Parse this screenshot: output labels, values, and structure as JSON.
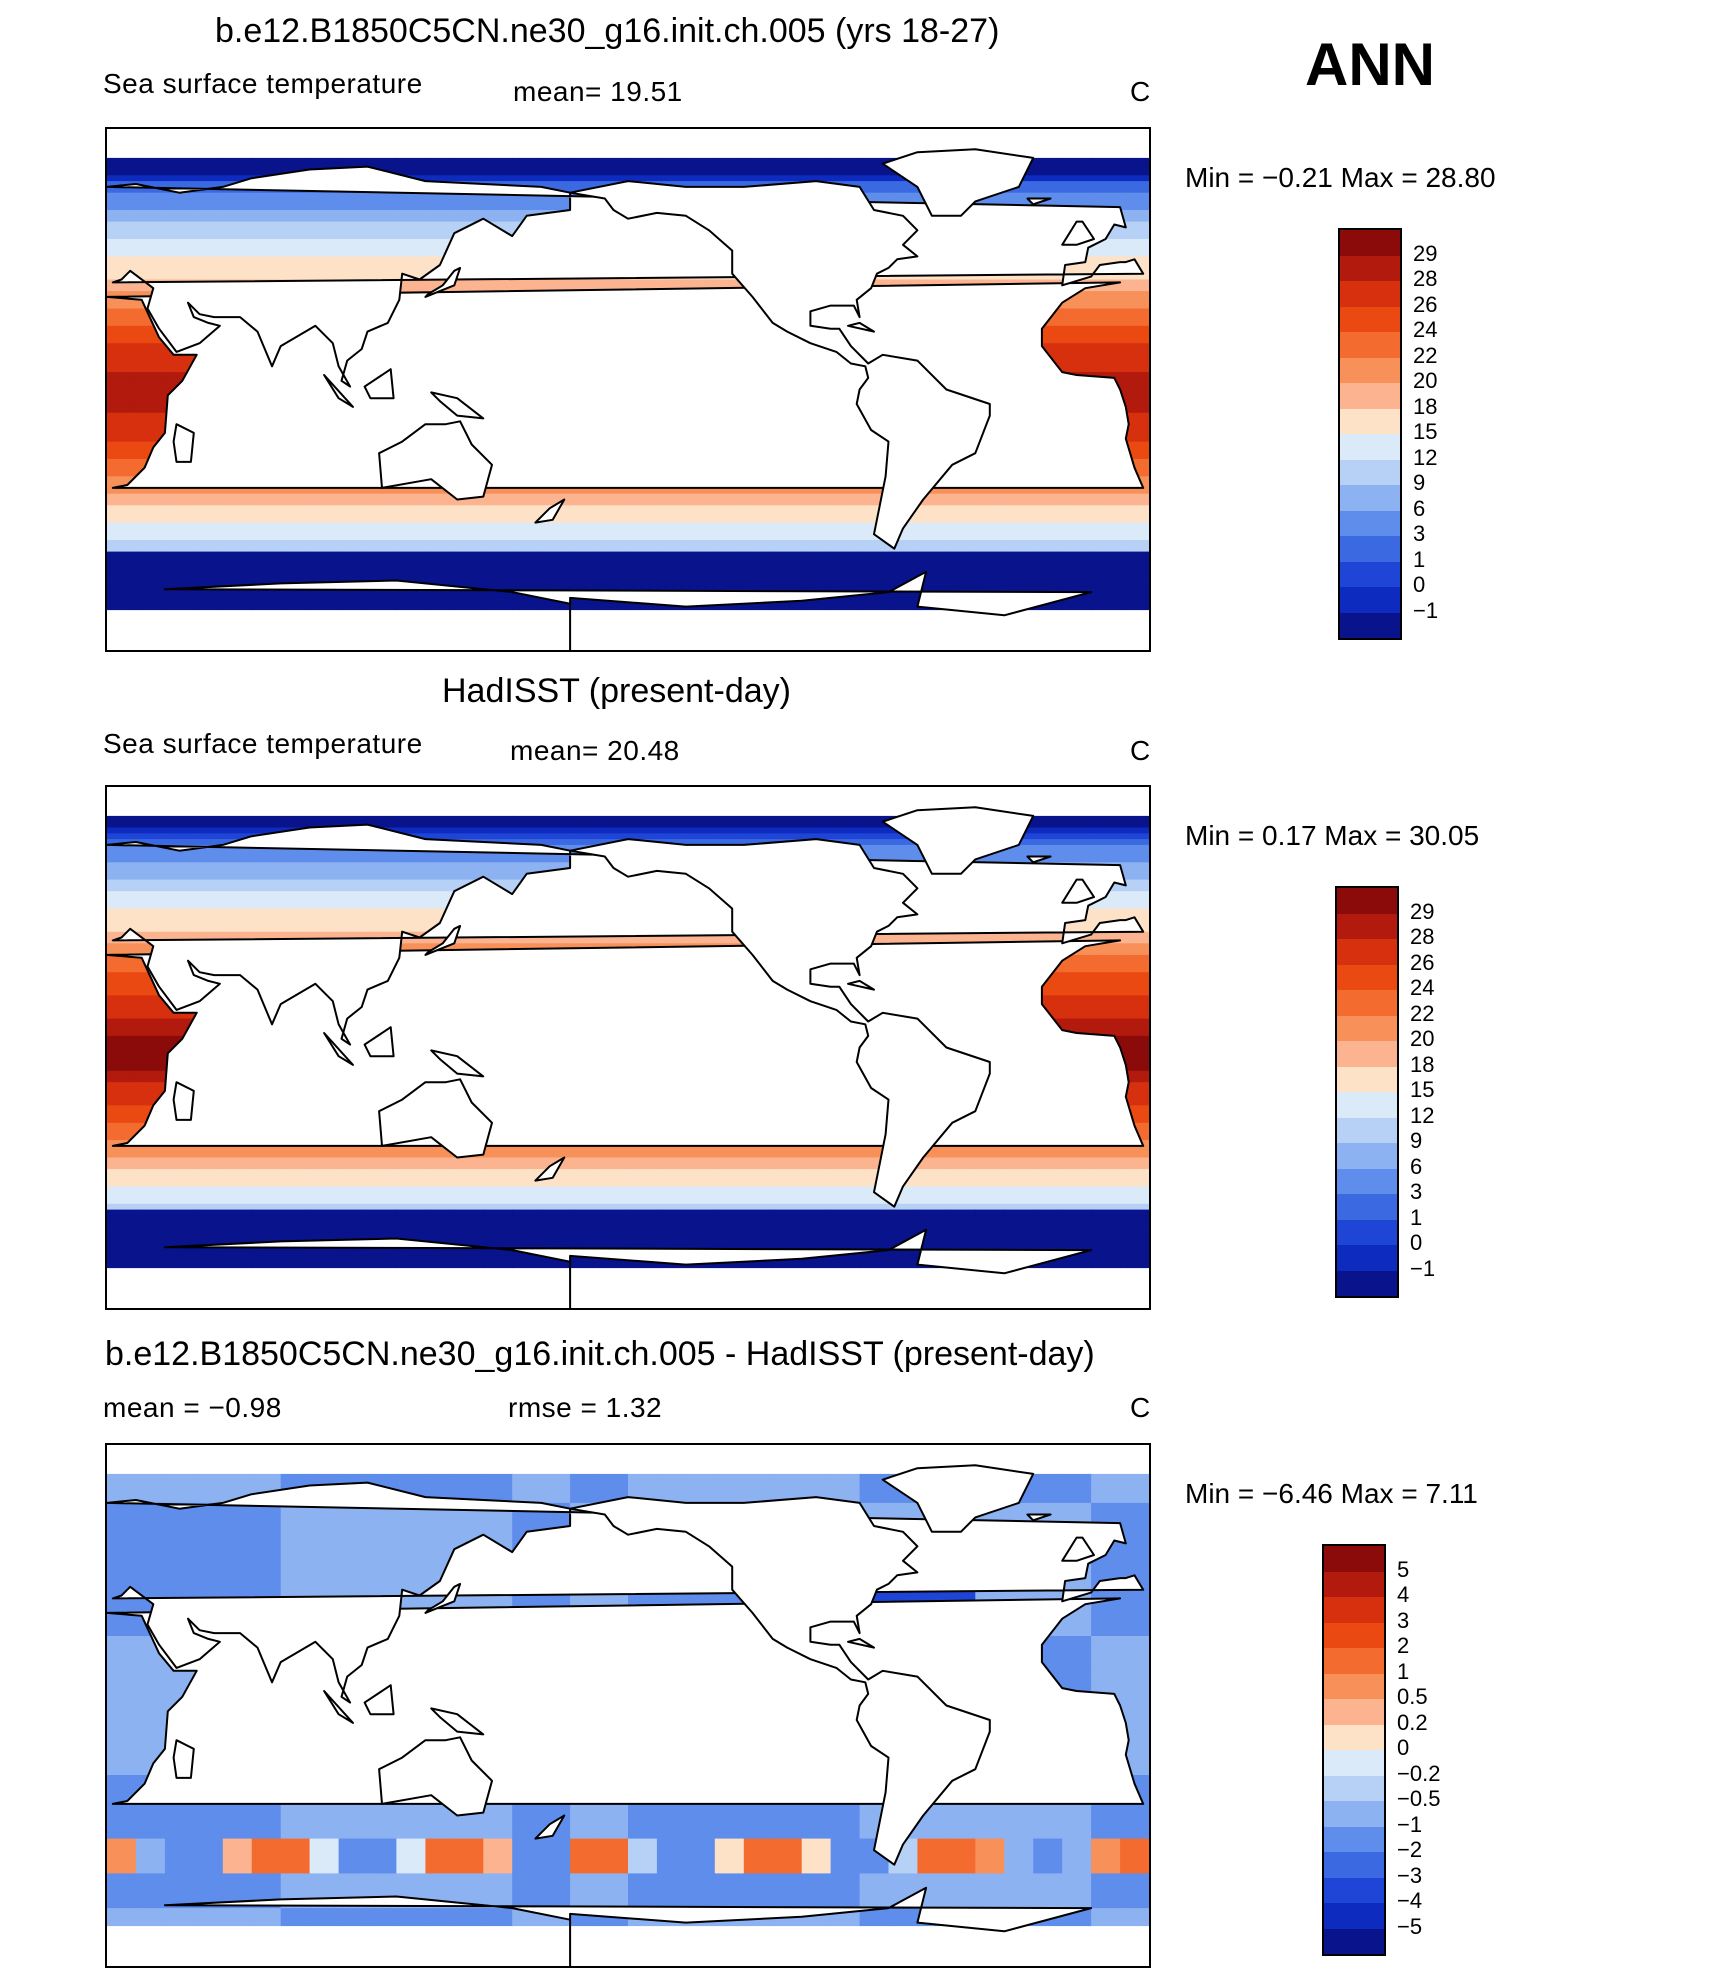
{
  "season_label": "ANN",
  "panels": [
    {
      "title": "b.e12.B1850C5CN.ne30_g16.init.ch.005 (yrs 18-27)",
      "left_label": "Sea surface temperature",
      "center_label": "mean=   19.51",
      "units": "C",
      "min_max": "Min  =    −0.21  Max  =    28.80",
      "kind": "model"
    },
    {
      "title": "HadISST (present-day)",
      "left_label": "Sea surface temperature",
      "center_label": "mean=   20.48",
      "units": "C",
      "min_max": "Min  =     0.17  Max  =    30.05",
      "kind": "obs"
    },
    {
      "title": "b.e12.B1850C5CN.ne30_g16.init.ch.005 - HadISST (present-day)",
      "left_label": "mean  =    −0.98",
      "center_label": "rmse  =     1.32",
      "units": "C",
      "min_max": "Min  =    −6.46  Max  =     7.11",
      "kind": "diff"
    }
  ],
  "chart_data": [
    {
      "type": "heatmap",
      "title": "b.e12.B1850C5CN.ne30_g16.init.ch.005 (yrs 18-27)",
      "variable": "Sea surface temperature",
      "units": "C",
      "mean": 19.51,
      "min": -0.21,
      "max": 28.8,
      "colorbar_levels": [
        "29",
        "28",
        "26",
        "24",
        "22",
        "20",
        "18",
        "15",
        "12",
        "9",
        "6",
        "3",
        "1",
        "0",
        "−1"
      ],
      "colors": [
        "#8b0a0a",
        "#b11a0c",
        "#d6300f",
        "#ea4a12",
        "#f36b2e",
        "#f8905a",
        "#fbb48f",
        "#fde2c8",
        "#dbeaf8",
        "#b7d1f6",
        "#8db2f1",
        "#5f8deb",
        "#3a69e2",
        "#1f45d6",
        "#0d2bbf",
        "#08138c"
      ]
    },
    {
      "type": "heatmap",
      "title": "HadISST (present-day)",
      "variable": "Sea surface temperature",
      "units": "C",
      "mean": 20.48,
      "min": 0.17,
      "max": 30.05,
      "colorbar_levels": [
        "29",
        "28",
        "26",
        "24",
        "22",
        "20",
        "18",
        "15",
        "12",
        "9",
        "6",
        "3",
        "1",
        "0",
        "−1"
      ],
      "colors": [
        "#8b0a0a",
        "#b11a0c",
        "#d6300f",
        "#ea4a12",
        "#f36b2e",
        "#f8905a",
        "#fbb48f",
        "#fde2c8",
        "#dbeaf8",
        "#b7d1f6",
        "#8db2f1",
        "#5f8deb",
        "#3a69e2",
        "#1f45d6",
        "#0d2bbf",
        "#08138c"
      ]
    },
    {
      "type": "heatmap",
      "title": "b.e12.B1850C5CN.ne30_g16.init.ch.005 - HadISST (present-day)",
      "units": "C",
      "mean": -0.98,
      "rmse": 1.32,
      "min": -6.46,
      "max": 7.11,
      "colorbar_levels": [
        "5",
        "4",
        "3",
        "2",
        "1",
        "0.5",
        "0.2",
        "0",
        "−0.2",
        "−0.5",
        "−1",
        "−2",
        "−3",
        "−4",
        "−5"
      ],
      "colors": [
        "#8b0a0a",
        "#b11a0c",
        "#d6300f",
        "#ea4a12",
        "#f36b2e",
        "#f8905a",
        "#fbb48f",
        "#fde2c8",
        "#dbeaf8",
        "#b7d1f6",
        "#8db2f1",
        "#5f8deb",
        "#3a69e2",
        "#1f45d6",
        "#0d2bbf",
        "#08138c"
      ]
    }
  ]
}
